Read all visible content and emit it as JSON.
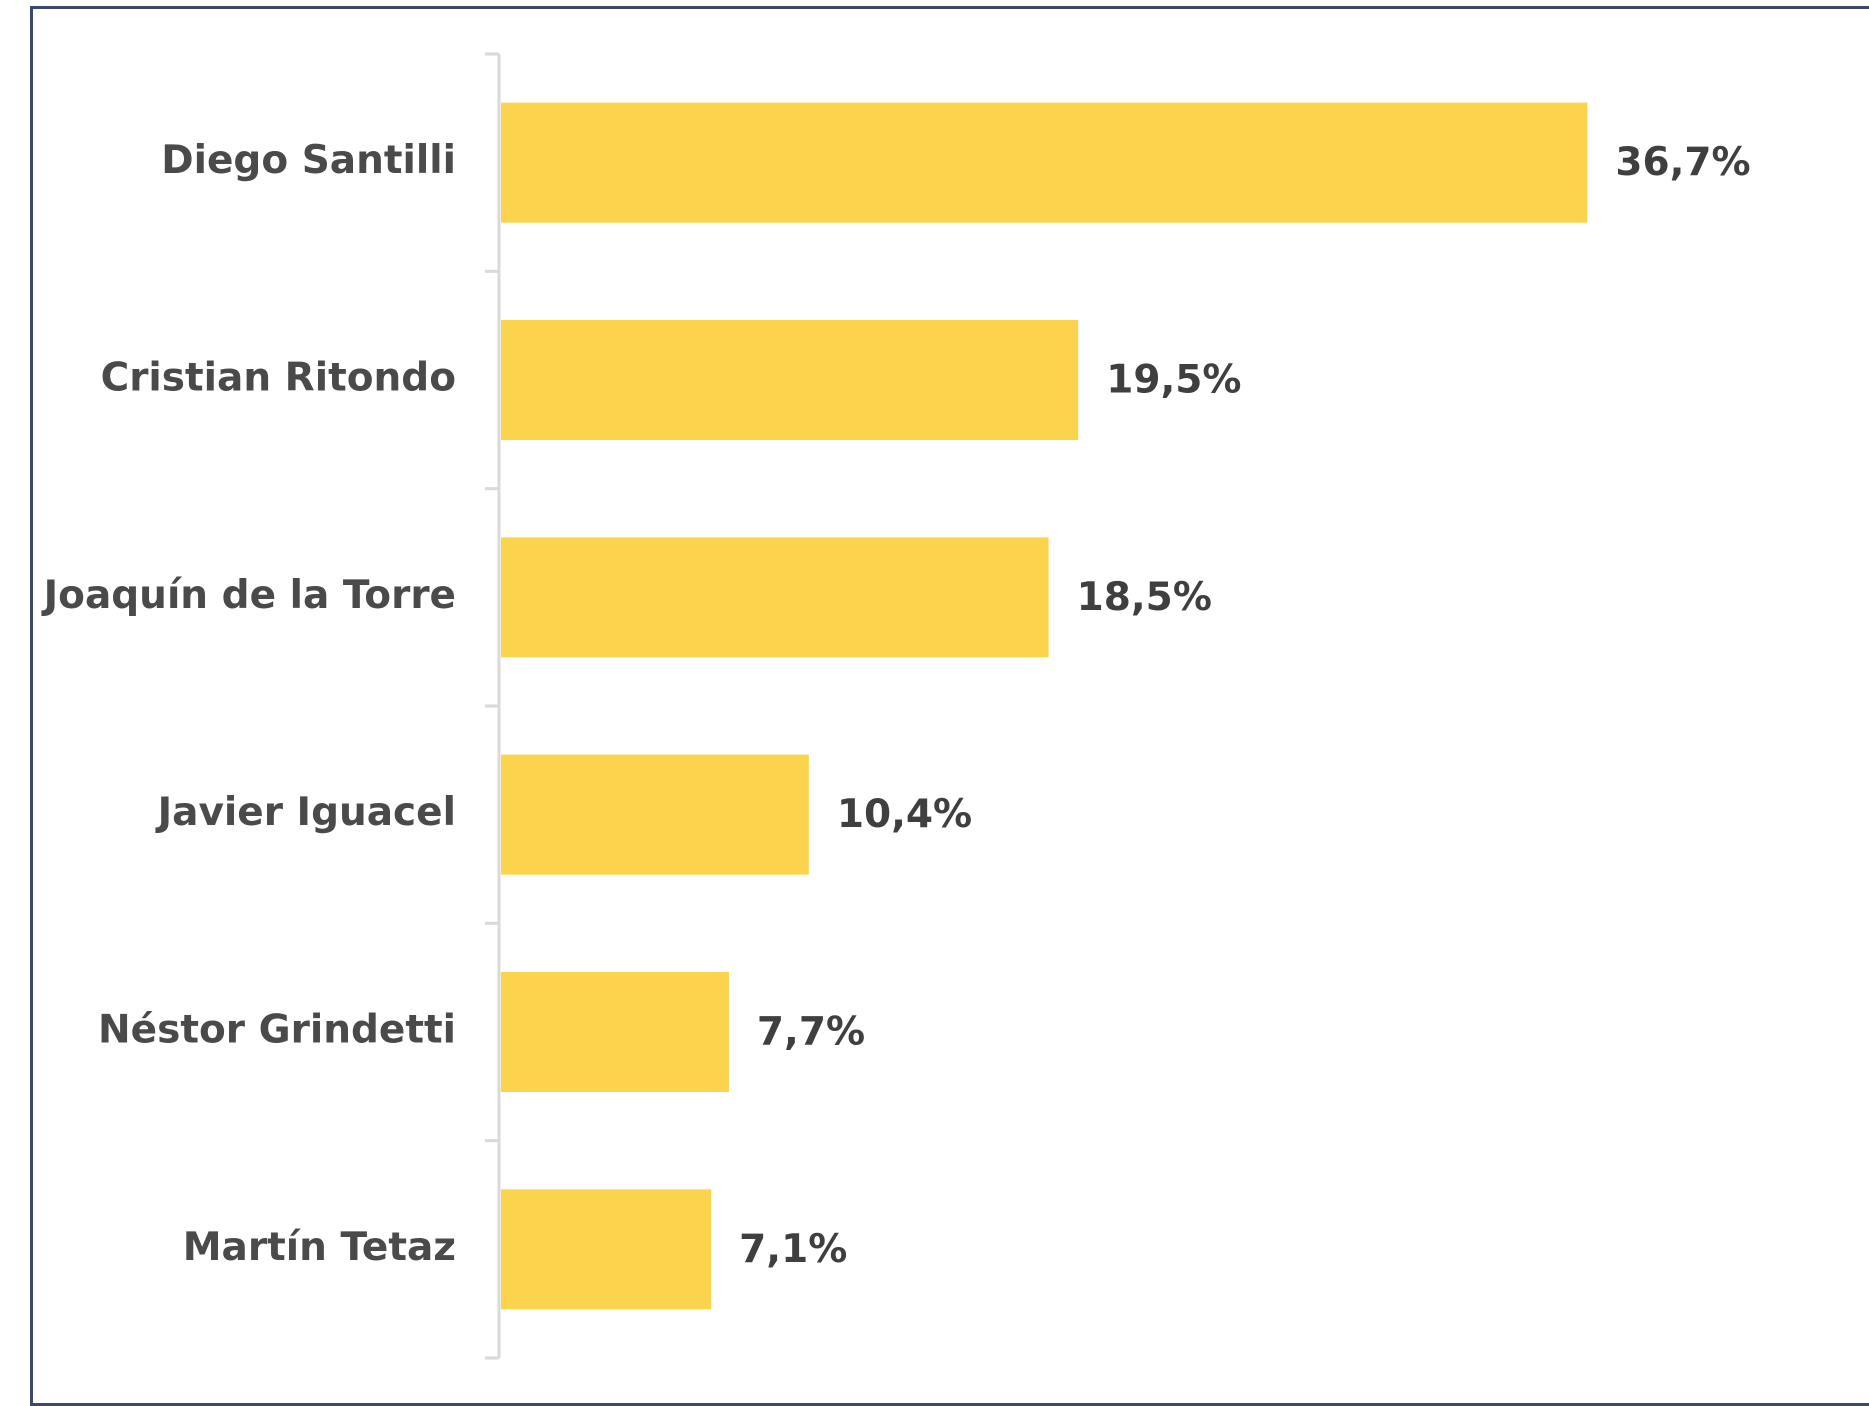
{
  "chart_data": {
    "type": "bar",
    "orientation": "horizontal",
    "categories": [
      "Diego Santilli",
      "Cristian Ritondo",
      "Joaquín de la Torre",
      "Javier Iguacel",
      "Néstor Grindetti",
      "Martín Tetaz"
    ],
    "values": [
      36.7,
      19.5,
      18.5,
      10.4,
      7.7,
      7.1
    ],
    "value_labels": [
      "36,7%",
      "19,5%",
      "18,5%",
      "10,4%",
      "7,7%",
      "7,1%"
    ],
    "title": "",
    "xlabel": "",
    "ylabel": "",
    "xlim": [
      0,
      40
    ],
    "grid": false,
    "legend": "none",
    "bar_color": "#fcd34d",
    "axis_color": "#d9d9d9",
    "frame_color": "#3b4a6b"
  }
}
